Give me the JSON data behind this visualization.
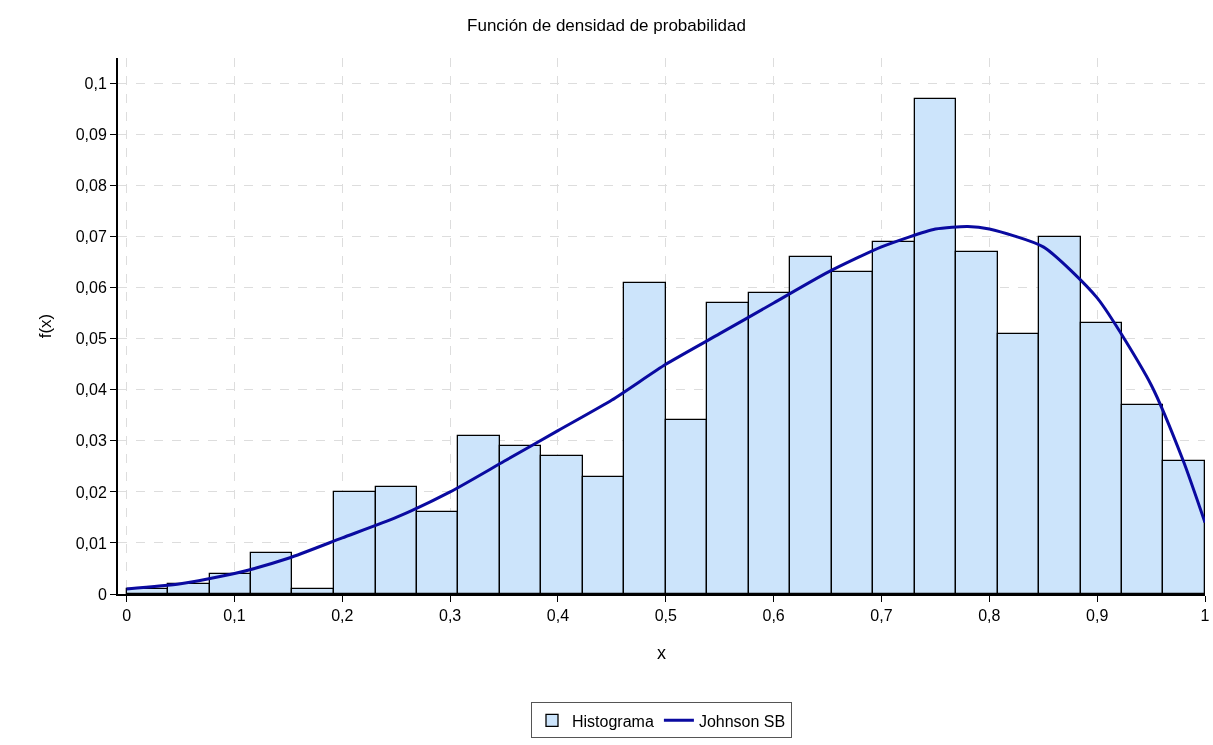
{
  "chart_data": {
    "type": "histogram",
    "title": "Función de densidad de probabilidad",
    "xlabel": "x",
    "ylabel": "f(x)",
    "bins": [
      0,
      0.0385,
      0.0769,
      0.1154,
      0.1538,
      0.1923,
      0.2308,
      0.2692,
      0.3077,
      0.3462,
      0.3846,
      0.4231,
      0.4615,
      0.5,
      0.5385,
      0.5769,
      0.6154,
      0.6538,
      0.6923,
      0.7308,
      0.7692,
      0.8077,
      0.8462,
      0.8846,
      0.9231,
      0.9615,
      1
    ],
    "series": [
      {
        "name": "Histograma",
        "color": "#cce4fb",
        "values": [
          0.001,
          0.002,
          0.004,
          0.008,
          0.001,
          0.02,
          0.021,
          0.016,
          0.031,
          0.029,
          0.027,
          0.023,
          0.061,
          0.034,
          0.057,
          0.059,
          0.066,
          0.063,
          0.069,
          0.097,
          0.067,
          0.051,
          0.07,
          0.053,
          0.037,
          0.026
        ]
      },
      {
        "name": "Johnson SB",
        "type": "line",
        "color": "#0a0aa0",
        "x": [
          0,
          0.05,
          0.1,
          0.15,
          0.2,
          0.25,
          0.3,
          0.35,
          0.4,
          0.45,
          0.5,
          0.55,
          0.6,
          0.65,
          0.7,
          0.75,
          0.78,
          0.8,
          0.85,
          0.9,
          0.95,
          0.98,
          1
        ],
        "values": [
          0.001,
          0.002,
          0.004,
          0.007,
          0.011,
          0.015,
          0.02,
          0.026,
          0.032,
          0.038,
          0.045,
          0.051,
          0.057,
          0.063,
          0.068,
          0.0715,
          0.072,
          0.0715,
          0.068,
          0.058,
          0.041,
          0.026,
          0.014
        ]
      }
    ],
    "xlim": [
      -0.008,
      1
    ],
    "xticks": [
      0,
      {
        "value": 0.1,
        "label": "0,1"
      },
      {
        "value": 0.2,
        "label": "0,2"
      },
      {
        "value": 0.3,
        "label": "0,3"
      },
      {
        "value": 0.4,
        "label": "0,4"
      },
      {
        "value": 0.5,
        "label": "0,5"
      },
      {
        "value": 0.6,
        "label": "0,6"
      },
      {
        "value": 0.7,
        "label": "0,7"
      },
      {
        "value": 0.8,
        "label": "0,8"
      },
      {
        "value": 0.9,
        "label": "0,9"
      },
      1
    ],
    "ylim": [
      0,
      0.105
    ],
    "yticks": [
      0,
      {
        "value": 0.01,
        "label": "0,01"
      },
      {
        "value": 0.02,
        "label": "0,02"
      },
      {
        "value": 0.03,
        "label": "0,03"
      },
      {
        "value": 0.04,
        "label": "0,04"
      },
      {
        "value": 0.05,
        "label": "0,05"
      },
      {
        "value": 0.06,
        "label": "0,06"
      },
      {
        "value": 0.07,
        "label": "0,07"
      },
      {
        "value": 0.08,
        "label": "0,08"
      },
      {
        "value": 0.09,
        "label": "0,09"
      },
      {
        "value": 0.1,
        "label": "0,1"
      }
    ],
    "grid": true,
    "legend": "bottom",
    "line_style": "solid",
    "marker": "none"
  }
}
